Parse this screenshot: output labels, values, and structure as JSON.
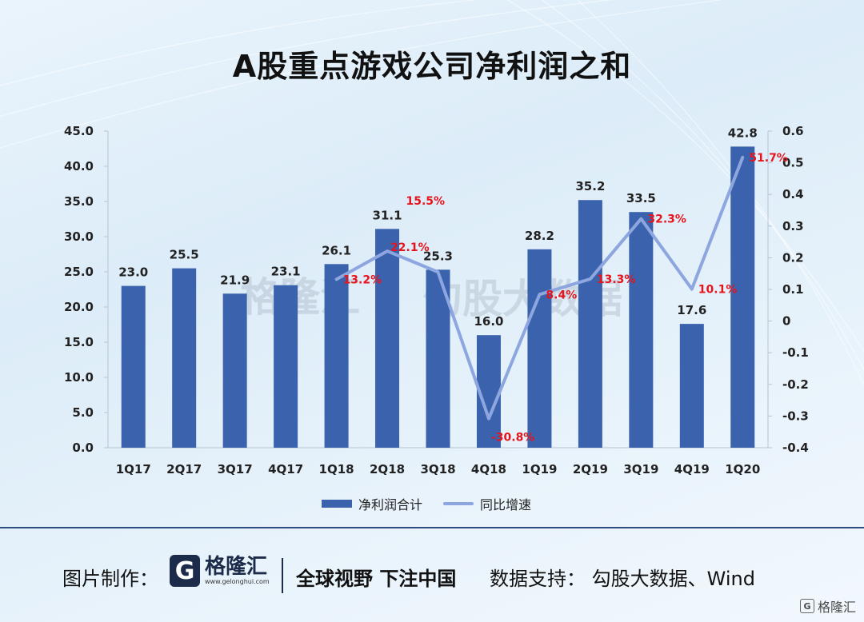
{
  "title": "A股重点游戏公司净利润之和",
  "chart_data": {
    "type": "bar",
    "categories": [
      "1Q17",
      "2Q17",
      "3Q17",
      "4Q17",
      "1Q18",
      "2Q18",
      "3Q18",
      "4Q18",
      "1Q19",
      "2Q19",
      "3Q19",
      "4Q19",
      "1Q20"
    ],
    "series": [
      {
        "name": "净利润合计",
        "type": "bar",
        "axis": "left",
        "values": [
          23.0,
          25.5,
          21.9,
          23.1,
          26.1,
          31.1,
          25.3,
          16.0,
          28.2,
          35.2,
          33.5,
          17.6,
          42.8
        ],
        "labels": [
          "23.0",
          "25.5",
          "21.9",
          "23.1",
          "26.1",
          "31.1",
          "25.3",
          "16.0",
          "28.2",
          "35.2",
          "33.5",
          "17.6",
          "42.8"
        ]
      },
      {
        "name": "同比增速",
        "type": "line",
        "axis": "right",
        "values": [
          null,
          null,
          null,
          null,
          0.132,
          0.221,
          0.155,
          -0.308,
          0.084,
          0.133,
          0.323,
          0.101,
          0.517
        ],
        "labels": [
          "",
          "",
          "",
          "",
          "13.2%",
          "22.1%",
          "15.5%",
          "-30.8%",
          "8.4%",
          "13.3%",
          "32.3%",
          "10.1%",
          "51.7%"
        ]
      }
    ],
    "y_left": {
      "min": 0,
      "max": 45,
      "ticks": [
        "0.0",
        "5.0",
        "10.0",
        "15.0",
        "20.0",
        "25.0",
        "30.0",
        "35.0",
        "40.0",
        "45.0"
      ]
    },
    "y_right": {
      "min": -0.4,
      "max": 0.6,
      "ticks": [
        "-0.4",
        "-0.3",
        "-0.2",
        "-0.1",
        "0",
        "0.1",
        "0.2",
        "0.3",
        "0.4",
        "0.5",
        "0.6"
      ]
    },
    "legend": "bottom-center",
    "colors": {
      "bar": "#3a62ad",
      "line": "#8ea6df",
      "pct_label": "#e8141c"
    }
  },
  "watermark": {
    "brand": "格隆汇",
    "url": "www.gelonghui.com",
    "partner": "勾股大数据"
  },
  "footer": {
    "credit_label": "图片制作：",
    "logo_letter": "G",
    "logo_name": "格隆汇",
    "logo_url": "www.gelonghui.com",
    "slogan": "全球视野 下注中国",
    "source": "数据支持：  勾股大数据、Wind"
  },
  "corner_badge": "格隆汇"
}
